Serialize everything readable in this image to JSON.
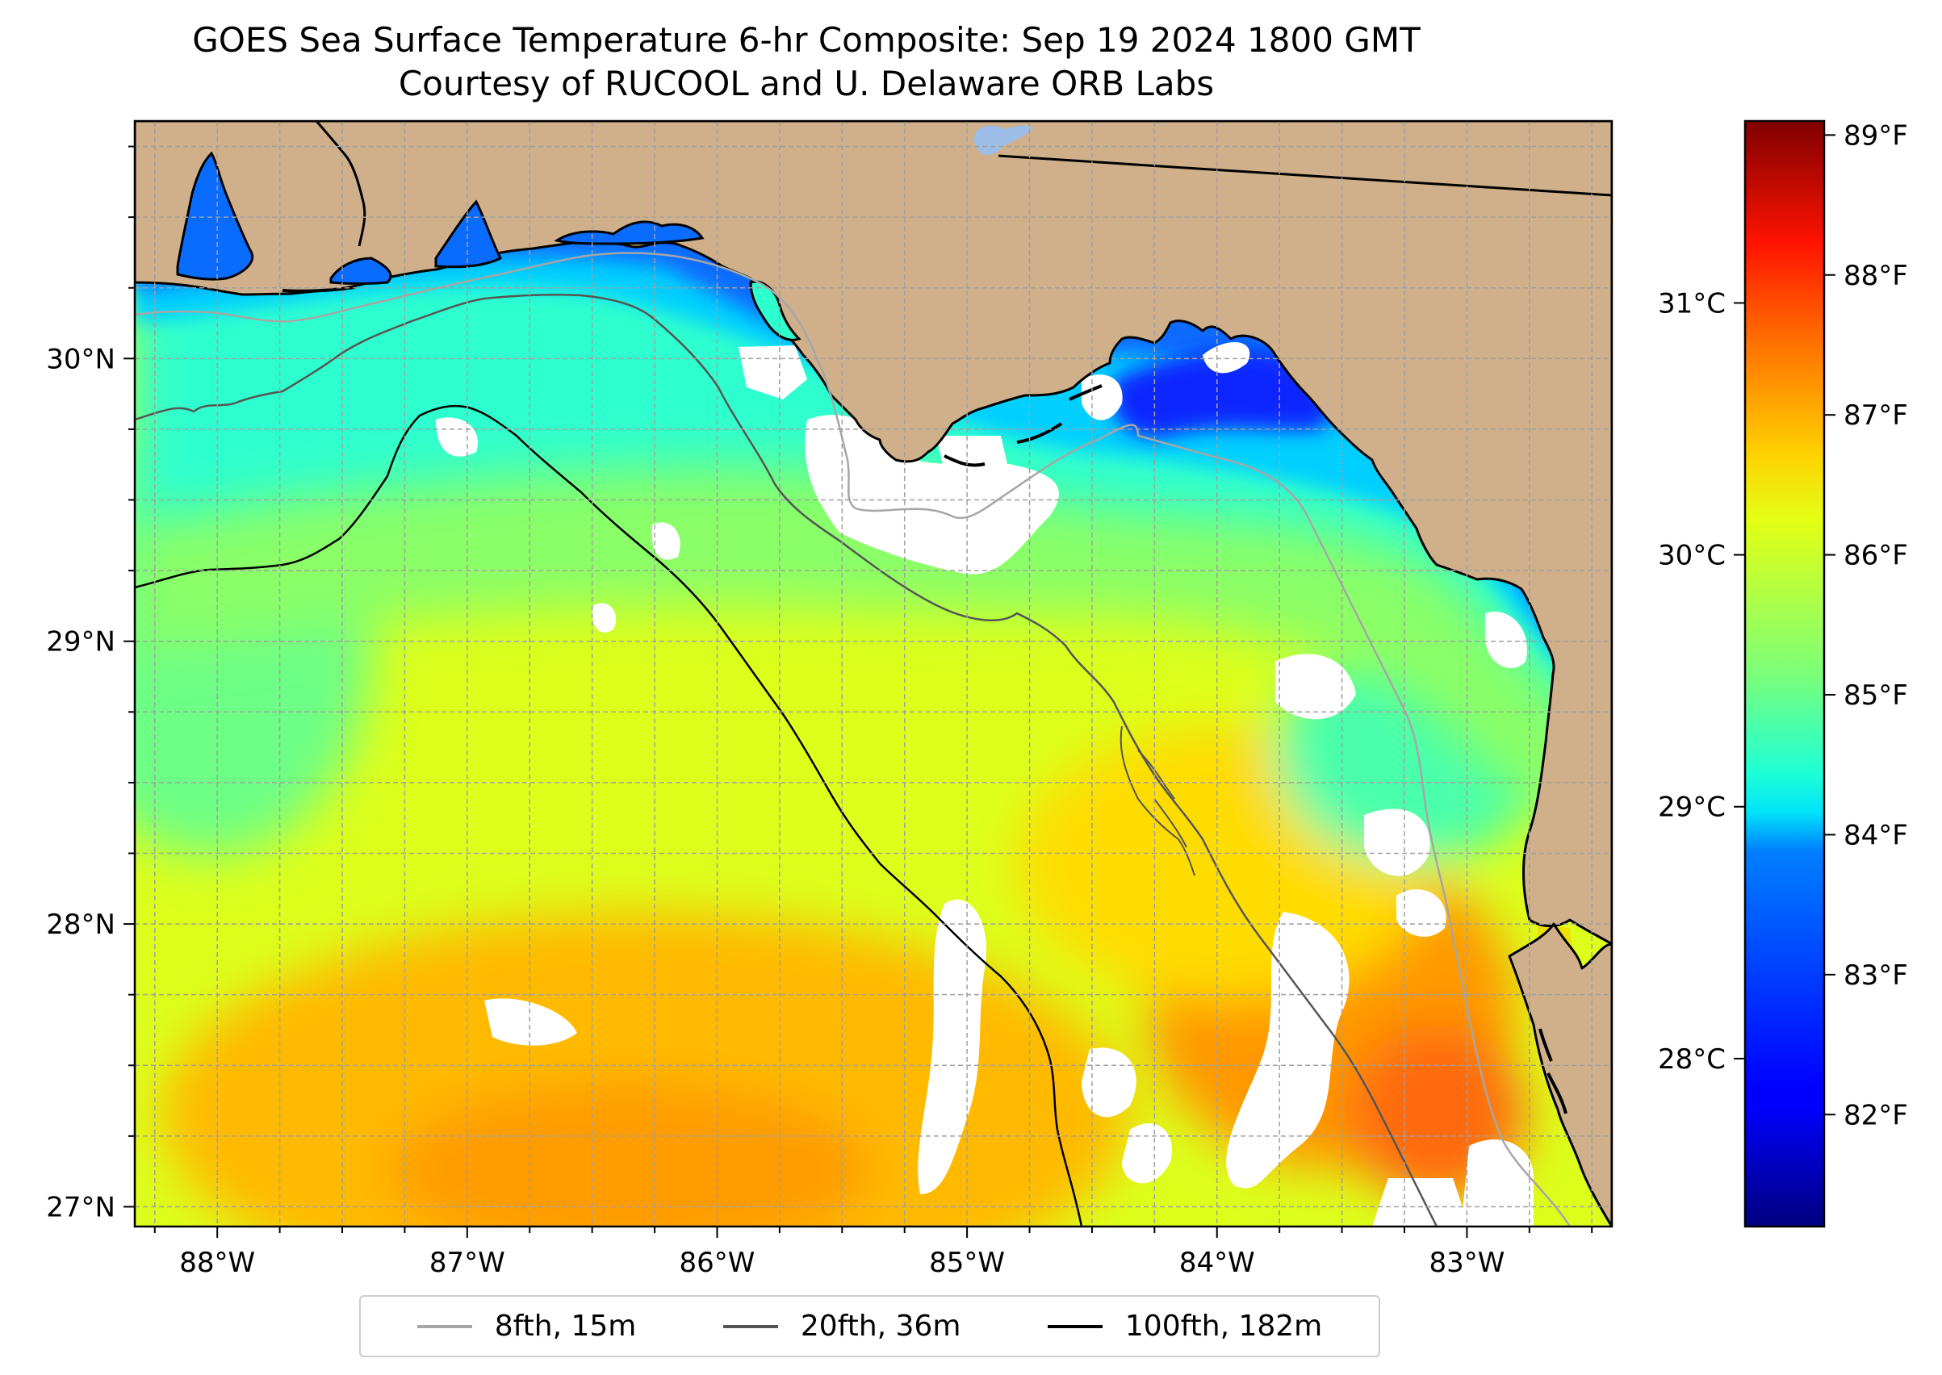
{
  "title": "GOES Sea Surface Temperature 6-hr Composite: Sep 19 2024 1800 GMT",
  "subtitle": "Courtesy of RUCOOL and U. Delaware ORB Labs",
  "map": {
    "lon_range": [
      -88.33,
      -82.42
    ],
    "lat_range": [
      26.93,
      30.84
    ],
    "lon_ticks": [
      {
        "value": -88,
        "label": "88°W"
      },
      {
        "value": -87,
        "label": "87°W"
      },
      {
        "value": -86,
        "label": "86°W"
      },
      {
        "value": -85,
        "label": "85°W"
      },
      {
        "value": -84,
        "label": "84°W"
      },
      {
        "value": -83,
        "label": "83°W"
      }
    ],
    "lat_ticks": [
      {
        "value": 27,
        "label": "27°N"
      },
      {
        "value": 28,
        "label": "28°N"
      },
      {
        "value": 29,
        "label": "29°N"
      },
      {
        "value": 30,
        "label": "30°N"
      }
    ],
    "minor_grid_step_deg": 0.25,
    "colors": {
      "land": "#cfb08b",
      "no_data": "#ffffff",
      "coastline": "#000000",
      "state_border": "#000000",
      "lake": "#9dbde8",
      "grid": "#a0a0a0"
    }
  },
  "colorbar": {
    "colormap": "jet",
    "f_range": [
      81.2,
      89.1
    ],
    "f_ticks": [
      {
        "value": 82,
        "label": "82°F"
      },
      {
        "value": 83,
        "label": "83°F"
      },
      {
        "value": 84,
        "label": "84°F"
      },
      {
        "value": 85,
        "label": "85°F"
      },
      {
        "value": 86,
        "label": "86°F"
      },
      {
        "value": 87,
        "label": "87°F"
      },
      {
        "value": 88,
        "label": "88°F"
      },
      {
        "value": 89,
        "label": "89°F"
      }
    ],
    "c_ticks": [
      {
        "value": 28,
        "label": "28°C"
      },
      {
        "value": 29,
        "label": "29°C"
      },
      {
        "value": 30,
        "label": "30°C"
      },
      {
        "value": 31,
        "label": "31°C"
      }
    ]
  },
  "legend": {
    "items": [
      {
        "label": "8fth, 15m",
        "color": "#a6a6a6"
      },
      {
        "label": "20fth, 36m",
        "color": "#555555"
      },
      {
        "label": "100fth, 182m",
        "color": "#000000"
      }
    ]
  }
}
